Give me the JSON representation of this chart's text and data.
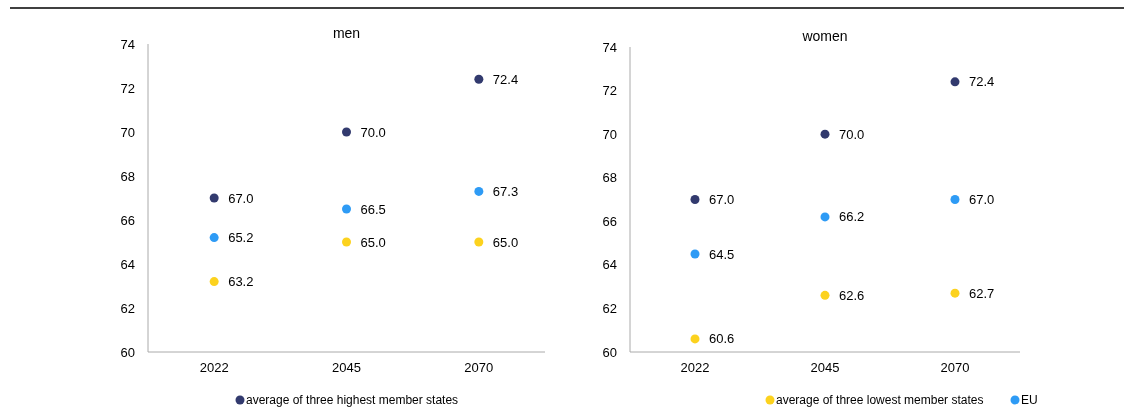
{
  "chart_data": [
    {
      "type": "scatter",
      "title": "men",
      "categories": [
        "2022",
        "2045",
        "2070"
      ],
      "ylim": [
        60,
        74
      ],
      "yticks": [
        60,
        62,
        64,
        66,
        68,
        70,
        72,
        74
      ],
      "marker": "circle",
      "legend": "bottom",
      "grid": false,
      "series": [
        {
          "name": "average of three highest member states",
          "color": "#323a6e",
          "values": [
            67.0,
            70.0,
            72.4
          ],
          "value_labels": [
            "67.0",
            "70.0",
            "72.4"
          ]
        },
        {
          "name": "average of three lowest member states",
          "color": "#fcd21e",
          "values": [
            63.2,
            65.0,
            65.0
          ],
          "value_labels": [
            "63.2",
            "65.0",
            "65.0"
          ]
        },
        {
          "name": "EU",
          "color": "#2e9bf5",
          "values": [
            65.2,
            66.5,
            67.3
          ],
          "value_labels": [
            "65.2",
            "66.5",
            "67.3"
          ]
        }
      ]
    },
    {
      "type": "scatter",
      "title": "women",
      "categories": [
        "2022",
        "2045",
        "2070"
      ],
      "ylim": [
        60,
        74
      ],
      "yticks": [
        60,
        62,
        64,
        66,
        68,
        70,
        72,
        74
      ],
      "marker": "circle",
      "grid": false,
      "series": [
        {
          "color": "#323a6e",
          "values": [
            67.0,
            70.0,
            72.4
          ],
          "value_labels": [
            "67.0",
            "70.0",
            "72.4"
          ]
        },
        {
          "color": "#fcd21e",
          "values": [
            60.6,
            62.6,
            62.7
          ],
          "value_labels": [
            "60.6",
            "62.6",
            "62.7"
          ]
        },
        {
          "color": "#2e9bf5",
          "values": [
            64.5,
            66.2,
            67.0
          ],
          "value_labels": [
            "64.5",
            "66.2",
            "67.0"
          ]
        }
      ]
    }
  ]
}
